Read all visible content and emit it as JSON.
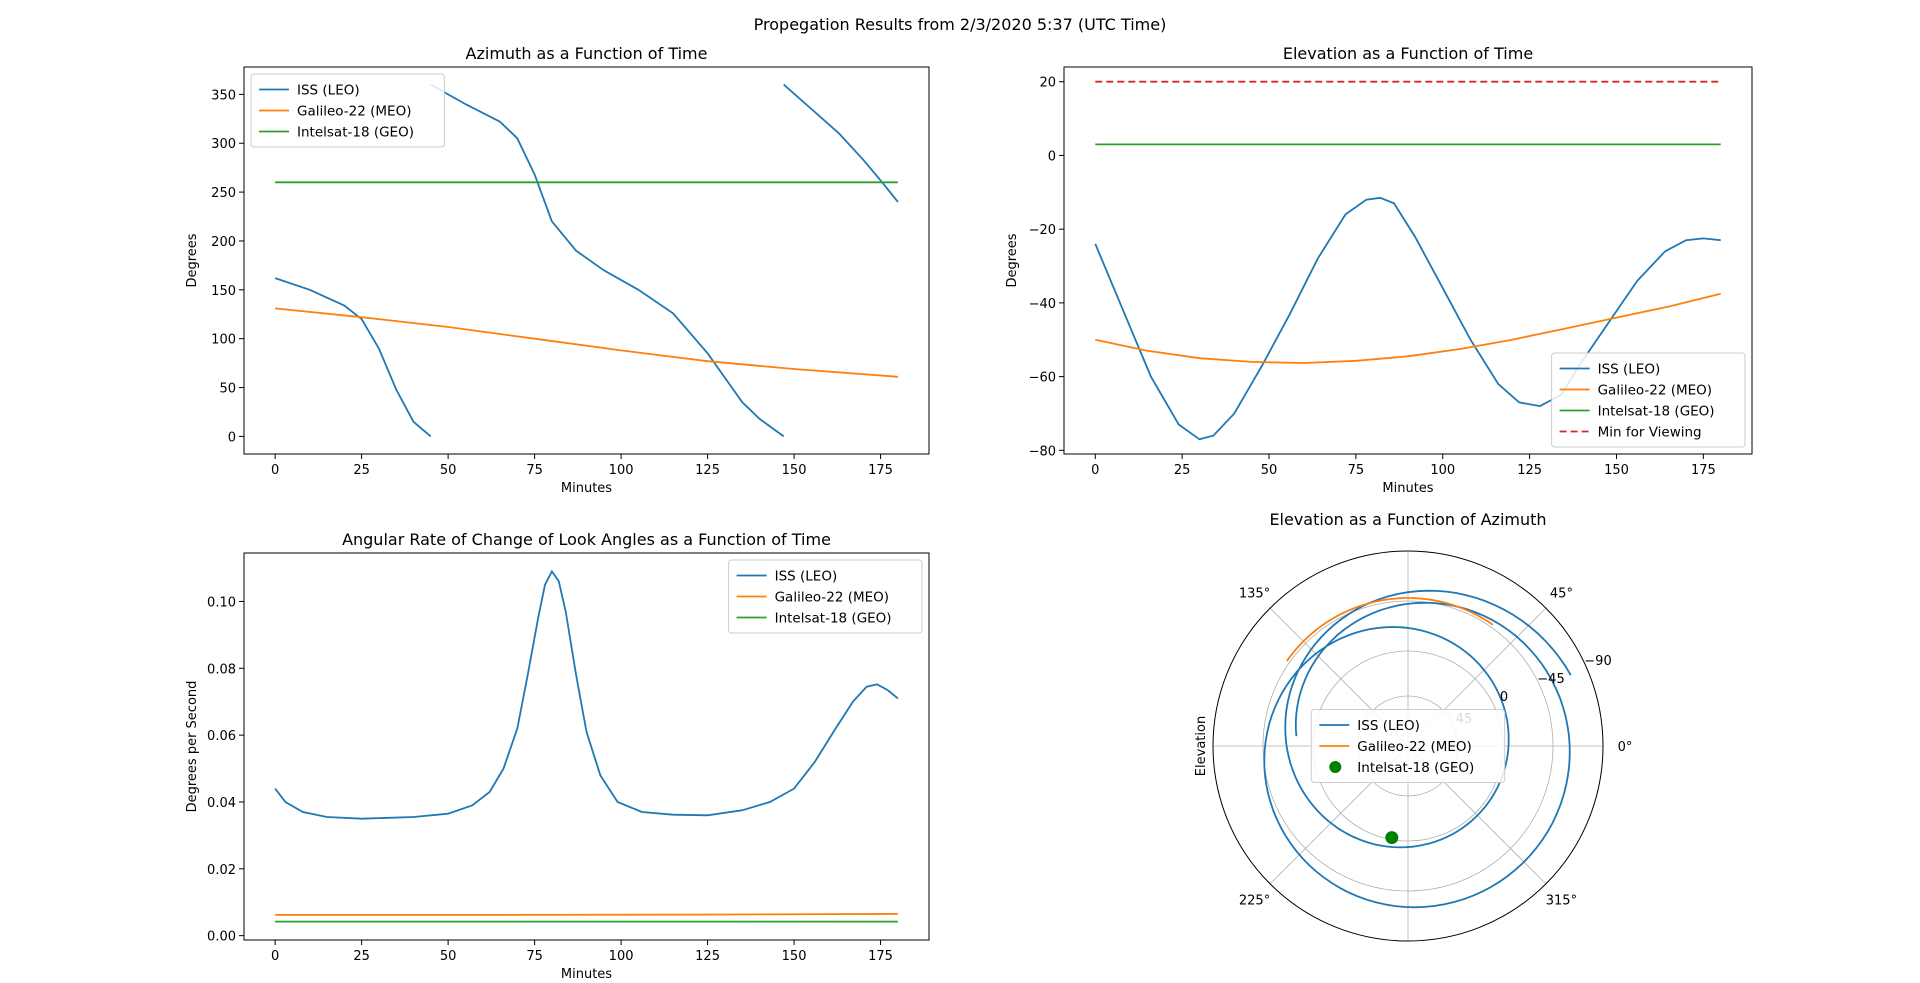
{
  "suptitle": "Propegation Results from 2/3/2020 5:37 (UTC Time)",
  "colors": {
    "iss": "#1f77b4",
    "galileo": "#ff7f0e",
    "intelsat": "#2ca02c",
    "min": "#d62728"
  },
  "chart_data": [
    {
      "type": "line",
      "title": "Azimuth as a Function of Time",
      "xlabel": "Minutes",
      "ylabel": "Degrees",
      "xlim": [
        -9,
        189
      ],
      "ylim": [
        -18,
        378
      ],
      "xticks": [
        0,
        25,
        50,
        75,
        100,
        125,
        150,
        175
      ],
      "yticks": [
        0,
        50,
        100,
        150,
        200,
        250,
        300,
        350
      ],
      "legend": "top-left",
      "series": [
        {
          "name": "ISS (LEO)",
          "color": "#1f77b4",
          "segments": [
            [
              [
                0,
                162
              ],
              [
                10,
                150
              ],
              [
                20,
                134
              ],
              [
                25,
                120
              ],
              [
                30,
                90
              ],
              [
                35,
                48
              ],
              [
                40,
                15
              ],
              [
                45,
                0
              ]
            ],
            [
              [
                45,
                360
              ],
              [
                55,
                340
              ],
              [
                65,
                322
              ],
              [
                70,
                305
              ],
              [
                75,
                268
              ],
              [
                80,
                220
              ],
              [
                87,
                190
              ],
              [
                95,
                170
              ],
              [
                105,
                150
              ],
              [
                115,
                126
              ],
              [
                125,
                85
              ],
              [
                135,
                35
              ],
              [
                140,
                18
              ],
              [
                147,
                0
              ]
            ],
            [
              [
                147,
                360
              ],
              [
                155,
                335
              ],
              [
                163,
                310
              ],
              [
                170,
                283
              ],
              [
                175,
                262
              ],
              [
                180,
                240
              ]
            ]
          ]
        },
        {
          "name": "Galileo-22 (MEO)",
          "color": "#ff7f0e",
          "segments": [
            [
              [
                0,
                131
              ],
              [
                25,
                122
              ],
              [
                50,
                112
              ],
              [
                75,
                100
              ],
              [
                100,
                88
              ],
              [
                125,
                77
              ],
              [
                150,
                69
              ],
              [
                180,
                61
              ]
            ]
          ]
        },
        {
          "name": "Intelsat-18 (GEO)",
          "color": "#2ca02c",
          "segments": [
            [
              [
                0,
                260
              ],
              [
                180,
                260
              ]
            ]
          ]
        }
      ]
    },
    {
      "type": "line",
      "title": "Elevation as a Function of Time",
      "xlabel": "Minutes",
      "ylabel": "Degrees",
      "xlim": [
        -9,
        189
      ],
      "ylim": [
        -81,
        24
      ],
      "xticks": [
        0,
        25,
        50,
        75,
        100,
        125,
        150,
        175
      ],
      "yticks": [
        -80,
        -60,
        -40,
        -20,
        0,
        20
      ],
      "legend": "lower-right",
      "series": [
        {
          "name": "ISS (LEO)",
          "color": "#1f77b4",
          "segments": [
            [
              [
                0,
                -24
              ],
              [
                8,
                -42
              ],
              [
                16,
                -60
              ],
              [
                24,
                -73
              ],
              [
                30,
                -77
              ],
              [
                34,
                -76
              ],
              [
                40,
                -70
              ],
              [
                48,
                -57
              ],
              [
                56,
                -43
              ],
              [
                64,
                -28
              ],
              [
                72,
                -16
              ],
              [
                78,
                -12
              ],
              [
                82,
                -11.5
              ],
              [
                86,
                -13
              ],
              [
                92,
                -22
              ],
              [
                100,
                -36
              ],
              [
                108,
                -50
              ],
              [
                116,
                -62
              ],
              [
                122,
                -67
              ],
              [
                128,
                -68
              ],
              [
                134,
                -65
              ],
              [
                140,
                -56
              ],
              [
                148,
                -45
              ],
              [
                156,
                -34
              ],
              [
                164,
                -26
              ],
              [
                170,
                -23
              ],
              [
                175,
                -22.5
              ],
              [
                180,
                -23
              ]
            ]
          ]
        },
        {
          "name": "Galileo-22 (MEO)",
          "color": "#ff7f0e",
          "segments": [
            [
              [
                0,
                -50
              ],
              [
                15,
                -53
              ],
              [
                30,
                -55
              ],
              [
                45,
                -56
              ],
              [
                60,
                -56.3
              ],
              [
                75,
                -55.7
              ],
              [
                90,
                -54.5
              ],
              [
                105,
                -52.5
              ],
              [
                120,
                -50
              ],
              [
                135,
                -47
              ],
              [
                150,
                -44
              ],
              [
                165,
                -41
              ],
              [
                180,
                -37.5
              ]
            ]
          ]
        },
        {
          "name": "Intelsat-18 (GEO)",
          "color": "#2ca02c",
          "segments": [
            [
              [
                0,
                3
              ],
              [
                180,
                3
              ]
            ]
          ]
        },
        {
          "name": "Min for Viewing",
          "color": "#d62728",
          "dashed": true,
          "segments": [
            [
              [
                0,
                20
              ],
              [
                180,
                20
              ]
            ]
          ]
        }
      ]
    },
    {
      "type": "line",
      "title": "Angular Rate of Change of Look Angles as a Function of Time",
      "xlabel": "Minutes",
      "ylabel": "Degrees per Second",
      "xlim": [
        -9,
        189
      ],
      "ylim": [
        -0.0013,
        0.1145
      ],
      "xticks": [
        0,
        25,
        50,
        75,
        100,
        125,
        150,
        175
      ],
      "yticks": [
        0.0,
        0.02,
        0.04,
        0.06,
        0.08,
        0.1
      ],
      "ytick_labels": [
        "0.00",
        "0.02",
        "0.04",
        "0.06",
        "0.08",
        "0.10"
      ],
      "legend": "top-right",
      "series": [
        {
          "name": "ISS (LEO)",
          "color": "#1f77b4",
          "segments": [
            [
              [
                0,
                0.044
              ],
              [
                3,
                0.04
              ],
              [
                8,
                0.037
              ],
              [
                15,
                0.0355
              ],
              [
                25,
                0.035
              ],
              [
                40,
                0.0355
              ],
              [
                50,
                0.0365
              ],
              [
                57,
                0.039
              ],
              [
                62,
                0.043
              ],
              [
                66,
                0.05
              ],
              [
                70,
                0.062
              ],
              [
                73,
                0.078
              ],
              [
                76,
                0.095
              ],
              [
                78,
                0.105
              ],
              [
                80,
                0.109
              ],
              [
                82,
                0.106
              ],
              [
                84,
                0.097
              ],
              [
                87,
                0.078
              ],
              [
                90,
                0.061
              ],
              [
                94,
                0.048
              ],
              [
                99,
                0.04
              ],
              [
                106,
                0.037
              ],
              [
                115,
                0.0362
              ],
              [
                125,
                0.036
              ],
              [
                135,
                0.0375
              ],
              [
                143,
                0.04
              ],
              [
                150,
                0.044
              ],
              [
                156,
                0.052
              ],
              [
                162,
                0.062
              ],
              [
                167,
                0.07
              ],
              [
                171,
                0.0745
              ],
              [
                174,
                0.0752
              ],
              [
                177,
                0.0735
              ],
              [
                180,
                0.071
              ]
            ]
          ]
        },
        {
          "name": "Galileo-22 (MEO)",
          "color": "#ff7f0e",
          "segments": [
            [
              [
                0,
                0.0062
              ],
              [
                60,
                0.0062
              ],
              [
                120,
                0.0063
              ],
              [
                180,
                0.0065
              ]
            ]
          ]
        },
        {
          "name": "Intelsat-18 (GEO)",
          "color": "#2ca02c",
          "segments": [
            [
              [
                0,
                0.0042
              ],
              [
                180,
                0.0042
              ]
            ]
          ]
        }
      ]
    },
    {
      "type": "polar",
      "title": "Elevation as a Function of Azimuth",
      "ylabel": "Elevation",
      "r_ticks": [
        "45",
        "0",
        "−45",
        "−90"
      ],
      "theta_ticks": [
        "0°",
        "45°",
        "135°",
        "225°",
        "315°"
      ],
      "legend": "center",
      "series": [
        {
          "name": "ISS (LEO)",
          "color": "#1f77b4",
          "kind": "line"
        },
        {
          "name": "Galileo-22 (MEO)",
          "color": "#ff7f0e",
          "kind": "line"
        },
        {
          "name": "Intelsat-18 (GEO)",
          "color": "#008000",
          "kind": "scatter"
        }
      ]
    }
  ]
}
